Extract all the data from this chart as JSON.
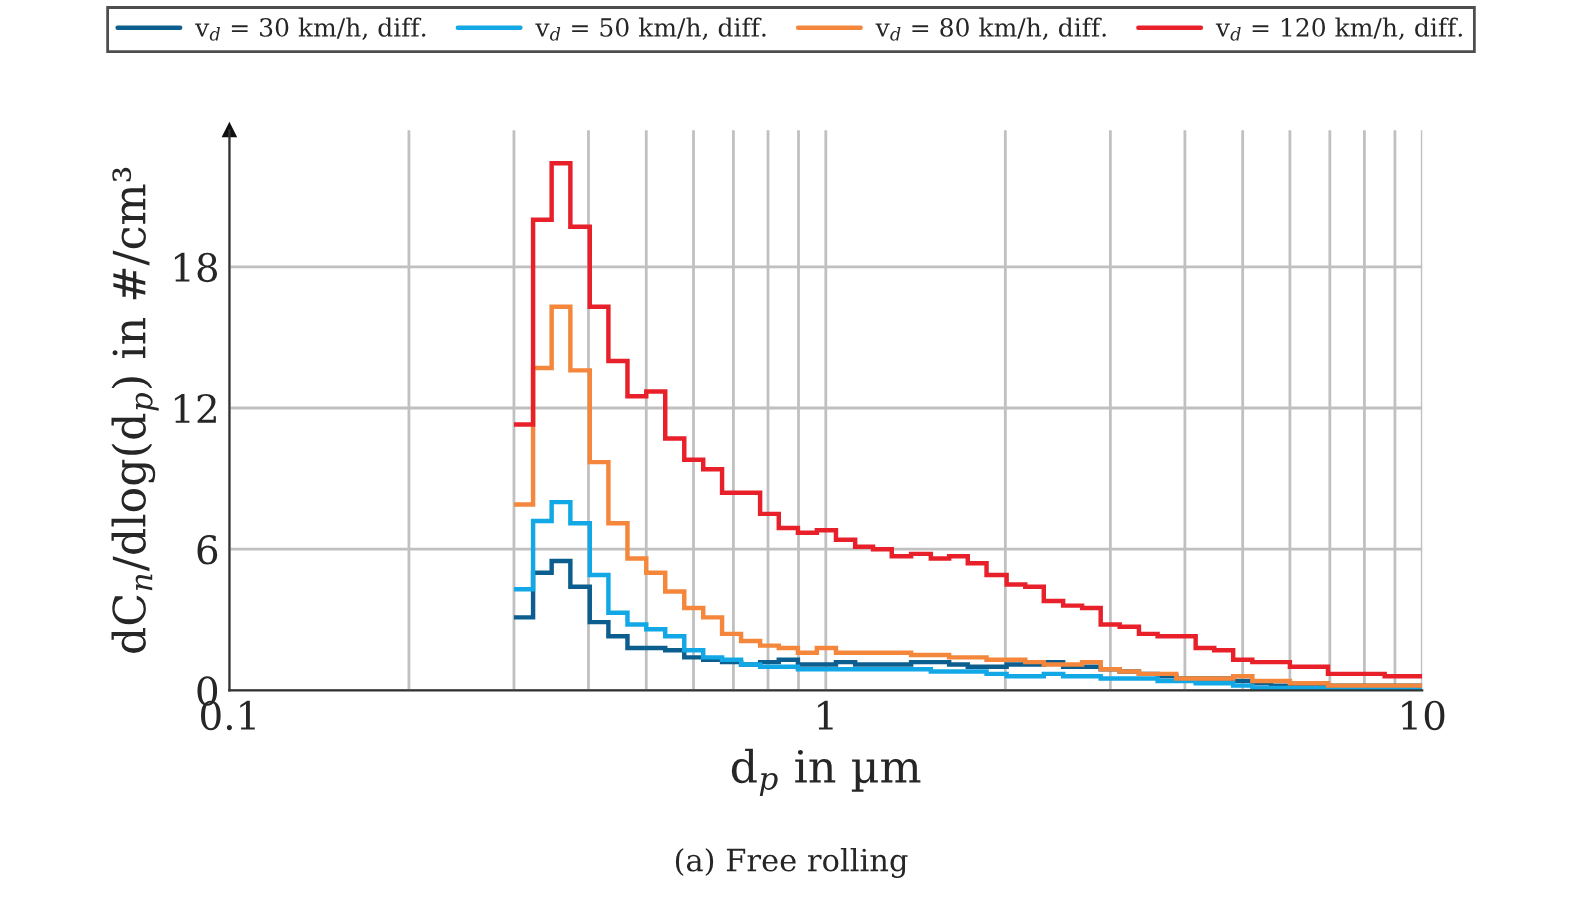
{
  "chart_data": {
    "type": "histogram",
    "xlabel": "d$_{p}$ in µm",
    "ylabel": "dC$_{n}$/dlog(d$_{p}$) in #/cm³",
    "annotations": [
      "(a) Free rolling"
    ],
    "log": "x",
    "grid": true,
    "legend": "top",
    "bins": [
      0.3,
      0.323,
      0.347,
      0.373,
      0.402,
      0.432,
      0.465,
      0.5,
      0.538,
      0.579,
      0.623,
      0.67,
      0.721,
      0.776,
      0.834,
      0.898,
      0.966,
      1.04,
      1.12,
      1.2,
      1.29,
      1.39,
      1.5,
      1.61,
      1.73,
      1.86,
      2.01,
      2.16,
      2.32,
      2.5,
      2.69,
      2.89,
      3.11,
      3.35,
      3.6,
      3.87,
      4.17,
      4.48,
      4.82,
      5.19,
      5.58,
      6.0,
      6.46,
      6.95,
      7.47,
      8.04,
      8.65,
      9.3,
      10.0
    ],
    "series": [
      {
        "name": "v$_{d}$ = 30 km/h, diff.",
        "color": "#0b5e8e",
        "values": [
          3.1,
          5.0,
          5.5,
          4.4,
          2.9,
          2.3,
          1.8,
          1.8,
          1.7,
          1.4,
          1.3,
          1.2,
          1.1,
          1.2,
          1.3,
          1.1,
          1.1,
          1.2,
          1.1,
          1.1,
          1.1,
          1.2,
          1.2,
          1.1,
          1.0,
          1.0,
          1.1,
          1.1,
          1.2,
          1.0,
          1.0,
          0.9,
          0.8,
          0.7,
          0.6,
          0.5,
          0.5,
          0.5,
          0.4,
          0.3,
          0.2,
          0.2,
          0.2,
          0.2,
          0.2,
          0.2,
          0.2,
          0.2
        ]
      },
      {
        "name": "v$_{d}$ = 50 km/h, diff.",
        "color": "#12a8e6",
        "values": [
          4.3,
          7.2,
          8.0,
          7.1,
          4.9,
          3.3,
          2.8,
          2.6,
          2.3,
          1.7,
          1.4,
          1.3,
          1.1,
          1.0,
          1.0,
          0.9,
          0.9,
          0.9,
          0.9,
          0.9,
          0.9,
          0.9,
          0.8,
          0.8,
          0.8,
          0.7,
          0.6,
          0.6,
          0.7,
          0.6,
          0.6,
          0.5,
          0.5,
          0.5,
          0.4,
          0.4,
          0.3,
          0.3,
          0.2,
          0.1,
          0.1,
          0.1,
          0.1,
          0.1,
          0.1,
          0.1,
          0.1,
          0.1
        ]
      },
      {
        "name": "v$_{d}$ = 80 km/h, diff.",
        "color": "#f4873c",
        "values": [
          7.9,
          13.7,
          16.3,
          13.6,
          9.7,
          7.1,
          5.6,
          5.0,
          4.2,
          3.5,
          3.1,
          2.4,
          2.1,
          1.9,
          1.8,
          1.6,
          1.8,
          1.6,
          1.6,
          1.6,
          1.6,
          1.5,
          1.5,
          1.4,
          1.4,
          1.3,
          1.3,
          1.2,
          1.1,
          1.1,
          1.2,
          0.9,
          0.8,
          0.7,
          0.7,
          0.5,
          0.5,
          0.5,
          0.6,
          0.4,
          0.4,
          0.3,
          0.3,
          0.2,
          0.2,
          0.2,
          0.2,
          0.2
        ]
      },
      {
        "name": "v$_{d}$ = 120 km/h, diff.",
        "color": "#e8202a",
        "values": [
          11.3,
          20.0,
          22.4,
          19.7,
          16.3,
          14.0,
          12.5,
          12.7,
          10.7,
          9.8,
          9.4,
          8.4,
          8.4,
          7.5,
          6.9,
          6.7,
          6.8,
          6.4,
          6.1,
          6.0,
          5.7,
          5.8,
          5.6,
          5.7,
          5.4,
          4.9,
          4.5,
          4.4,
          3.8,
          3.6,
          3.5,
          2.8,
          2.7,
          2.4,
          2.3,
          2.3,
          1.8,
          1.7,
          1.3,
          1.2,
          1.2,
          1.0,
          1.0,
          0.7,
          0.7,
          0.7,
          0.6,
          0.6
        ]
      }
    ],
    "xlim": [
      0.1,
      10
    ],
    "ylim": [
      0,
      23.8
    ],
    "xticks": [
      {
        "value": 0.1,
        "label": "0.1"
      },
      {
        "value": 0.2,
        "label": null
      },
      {
        "value": 0.3,
        "label": null
      },
      {
        "value": 0.4,
        "label": null
      },
      {
        "value": 0.5,
        "label": null
      },
      {
        "value": 0.6,
        "label": null
      },
      {
        "value": 0.7,
        "label": null
      },
      {
        "value": 0.8,
        "label": null
      },
      {
        "value": 0.9,
        "label": null
      },
      1,
      {
        "value": 2,
        "label": null
      },
      {
        "value": 3,
        "label": null
      },
      {
        "value": 4,
        "label": null
      },
      {
        "value": 5,
        "label": null
      },
      {
        "value": 6,
        "label": null
      },
      {
        "value": 7,
        "label": null
      },
      {
        "value": 8,
        "label": null
      },
      {
        "value": 9,
        "label": null
      },
      10
    ],
    "yticks": [
      0,
      6,
      12,
      18
    ]
  }
}
